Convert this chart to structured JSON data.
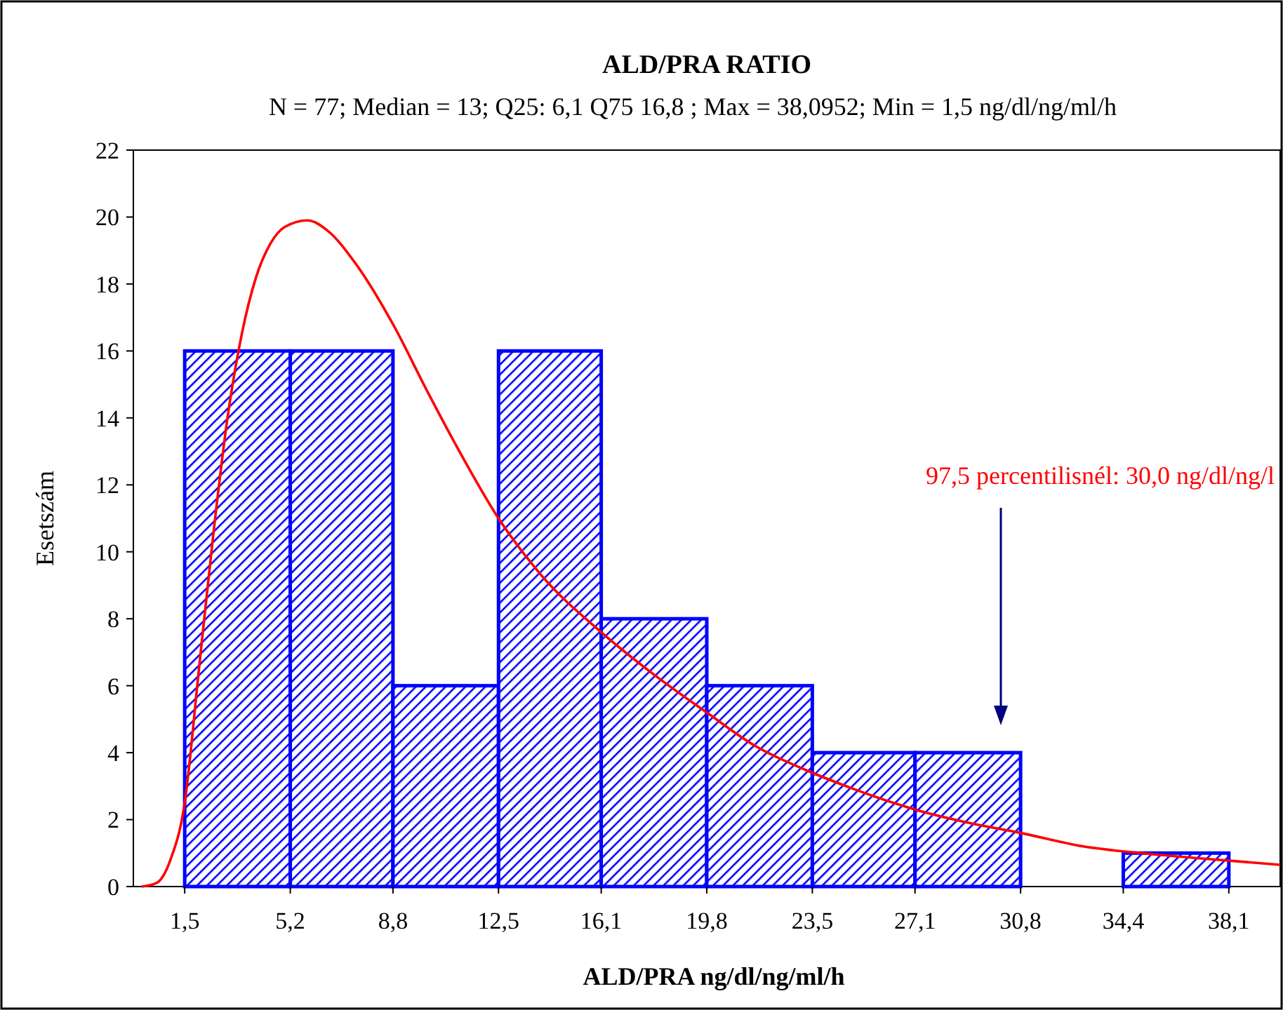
{
  "chart_data": {
    "type": "histogram",
    "title": "ALD/PRA RATIO",
    "subtitle": "N = 77; Median = 13; Q25: 6,1 Q75 16,8 ; Max = 38,0952; Min = 1,5 ng/dl/ng/ml/h",
    "xlabel": "ALD/PRA ng/dl/ng/ml/h",
    "ylabel": "Esetszám",
    "bins": [
      1.5,
      5.2,
      8.8,
      12.5,
      16.1,
      19.8,
      23.5,
      27.1,
      30.8,
      34.4,
      38.1
    ],
    "series": [
      {
        "color": "#0000ff",
        "values": [
          16,
          16,
          6,
          16,
          8,
          6,
          4,
          4,
          0,
          1
        ]
      },
      {
        "type": "line",
        "color": "#ff0000",
        "x": [
          0,
          0.5,
          1,
          1.5,
          2,
          2.5,
          3,
          3.5,
          4,
          4.5,
          5,
          5.8,
          6.5,
          7.5,
          8.8,
          10,
          11,
          12.5,
          14,
          16.1,
          18,
          19.8,
          21.5,
          23.5,
          25,
          27.1,
          29,
          30.8,
          33,
          35,
          37,
          39.9
        ],
        "values": [
          0,
          0.1,
          0.8,
          2.5,
          6.5,
          10.5,
          14,
          16.5,
          18.2,
          19.2,
          19.7,
          19.9,
          19.6,
          18.6,
          16.8,
          14.8,
          13.2,
          11,
          9.3,
          7.6,
          6.3,
          5.2,
          4.2,
          3.4,
          2.9,
          2.3,
          1.9,
          1.6,
          1.2,
          1,
          0.85,
          0.65
        ]
      }
    ],
    "xlim": [
      -0.3,
      39.9
    ],
    "xticks": [
      {
        "value": 1.5,
        "label": "1,5"
      },
      {
        "value": 5.2,
        "label": "5,2"
      },
      {
        "value": 8.8,
        "label": "8,8"
      },
      {
        "value": 12.5,
        "label": "12,5"
      },
      {
        "value": 16.1,
        "label": "16,1"
      },
      {
        "value": 19.8,
        "label": "19,8"
      },
      {
        "value": 23.5,
        "label": "23,5"
      },
      {
        "value": 27.1,
        "label": "27,1"
      },
      {
        "value": 30.8,
        "label": "30,8"
      },
      {
        "value": 34.4,
        "label": "34,4"
      },
      {
        "value": 38.1,
        "label": "38,1"
      }
    ],
    "ylim": [
      0,
      22
    ],
    "yticks": [
      0,
      2,
      4,
      6,
      8,
      10,
      12,
      14,
      16,
      18,
      20,
      22
    ],
    "annotations": [
      "97,5 percentilisnél: 30,0 ng/dl/ng/l"
    ]
  }
}
